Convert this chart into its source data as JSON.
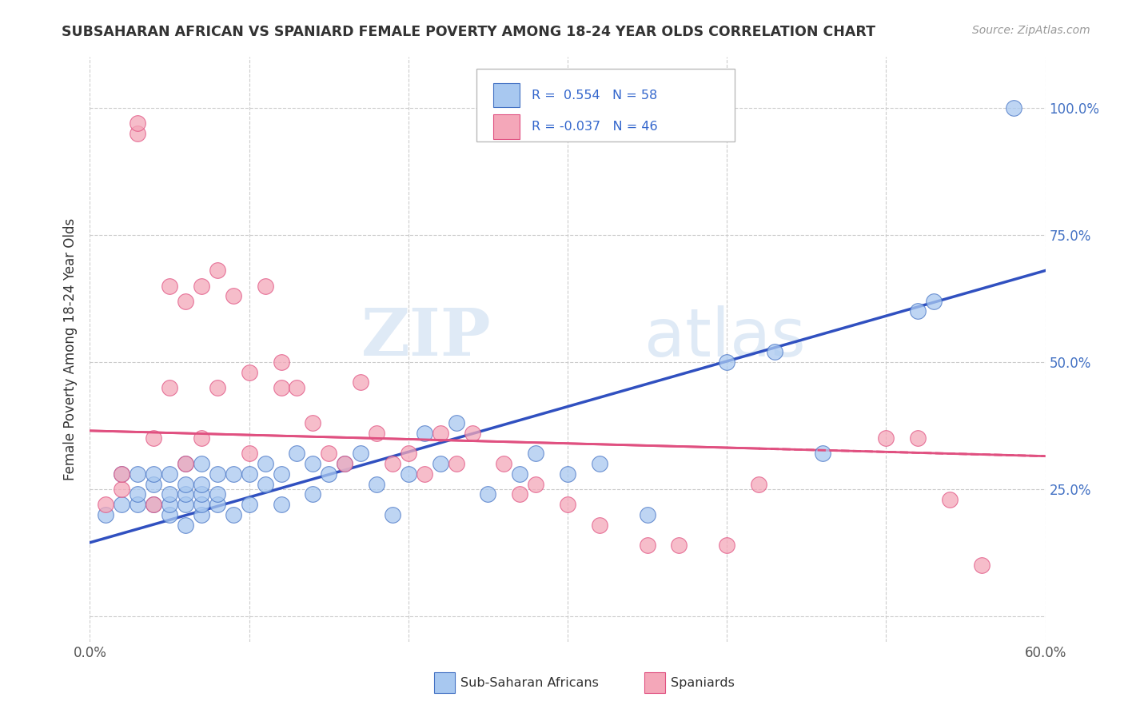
{
  "title": "SUBSAHARAN AFRICAN VS SPANIARD FEMALE POVERTY AMONG 18-24 YEAR OLDS CORRELATION CHART",
  "source": "Source: ZipAtlas.com",
  "ylabel": "Female Poverty Among 18-24 Year Olds",
  "xlim": [
    0.0,
    0.6
  ],
  "ylim": [
    -0.05,
    1.1
  ],
  "x_tick_positions": [
    0.0,
    0.1,
    0.2,
    0.3,
    0.4,
    0.5,
    0.6
  ],
  "x_tick_labels": [
    "0.0%",
    "",
    "",
    "",
    "",
    "",
    "60.0%"
  ],
  "y_tick_positions": [
    0.0,
    0.25,
    0.5,
    0.75,
    1.0
  ],
  "y_tick_labels_right": [
    "",
    "25.0%",
    "50.0%",
    "75.0%",
    "100.0%"
  ],
  "blue_fill": "#a8c8f0",
  "blue_edge": "#4472c4",
  "pink_fill": "#f4a7b9",
  "pink_edge": "#e05080",
  "blue_line_color": "#3050c0",
  "pink_line_color": "#e05080",
  "legend_R_blue": "0.554",
  "legend_N_blue": "58",
  "legend_R_pink": "-0.037",
  "legend_N_pink": "46",
  "watermark_ZIP": "ZIP",
  "watermark_atlas": "atlas",
  "blue_scatter_x": [
    0.01,
    0.02,
    0.02,
    0.03,
    0.03,
    0.03,
    0.04,
    0.04,
    0.04,
    0.05,
    0.05,
    0.05,
    0.05,
    0.06,
    0.06,
    0.06,
    0.06,
    0.06,
    0.07,
    0.07,
    0.07,
    0.07,
    0.07,
    0.08,
    0.08,
    0.08,
    0.09,
    0.09,
    0.1,
    0.1,
    0.11,
    0.11,
    0.12,
    0.12,
    0.13,
    0.14,
    0.14,
    0.15,
    0.16,
    0.17,
    0.18,
    0.19,
    0.2,
    0.21,
    0.22,
    0.23,
    0.25,
    0.27,
    0.28,
    0.3,
    0.32,
    0.35,
    0.4,
    0.43,
    0.46,
    0.52,
    0.53,
    0.58
  ],
  "blue_scatter_y": [
    0.2,
    0.22,
    0.28,
    0.22,
    0.24,
    0.28,
    0.22,
    0.26,
    0.28,
    0.2,
    0.22,
    0.24,
    0.28,
    0.18,
    0.22,
    0.24,
    0.26,
    0.3,
    0.2,
    0.22,
    0.24,
    0.26,
    0.3,
    0.22,
    0.24,
    0.28,
    0.2,
    0.28,
    0.22,
    0.28,
    0.26,
    0.3,
    0.22,
    0.28,
    0.32,
    0.24,
    0.3,
    0.28,
    0.3,
    0.32,
    0.26,
    0.2,
    0.28,
    0.36,
    0.3,
    0.38,
    0.24,
    0.28,
    0.32,
    0.28,
    0.3,
    0.2,
    0.5,
    0.52,
    0.32,
    0.6,
    0.62,
    1.0
  ],
  "pink_scatter_x": [
    0.01,
    0.02,
    0.02,
    0.03,
    0.03,
    0.04,
    0.04,
    0.05,
    0.05,
    0.06,
    0.06,
    0.07,
    0.07,
    0.08,
    0.08,
    0.09,
    0.1,
    0.1,
    0.11,
    0.12,
    0.12,
    0.13,
    0.14,
    0.15,
    0.16,
    0.17,
    0.18,
    0.19,
    0.2,
    0.21,
    0.22,
    0.23,
    0.24,
    0.26,
    0.27,
    0.28,
    0.3,
    0.32,
    0.35,
    0.37,
    0.4,
    0.42,
    0.5,
    0.52,
    0.54,
    0.56
  ],
  "pink_scatter_y": [
    0.22,
    0.25,
    0.28,
    0.95,
    0.97,
    0.35,
    0.22,
    0.45,
    0.65,
    0.3,
    0.62,
    0.65,
    0.35,
    0.45,
    0.68,
    0.63,
    0.32,
    0.48,
    0.65,
    0.45,
    0.5,
    0.45,
    0.38,
    0.32,
    0.3,
    0.46,
    0.36,
    0.3,
    0.32,
    0.28,
    0.36,
    0.3,
    0.36,
    0.3,
    0.24,
    0.26,
    0.22,
    0.18,
    0.14,
    0.14,
    0.14,
    0.26,
    0.35,
    0.35,
    0.23,
    0.1
  ],
  "blue_line_x0": 0.0,
  "blue_line_y0": 0.145,
  "blue_line_x1": 0.6,
  "blue_line_y1": 0.68,
  "pink_line_x0": 0.0,
  "pink_line_y0": 0.365,
  "pink_line_x1": 0.6,
  "pink_line_y1": 0.315
}
